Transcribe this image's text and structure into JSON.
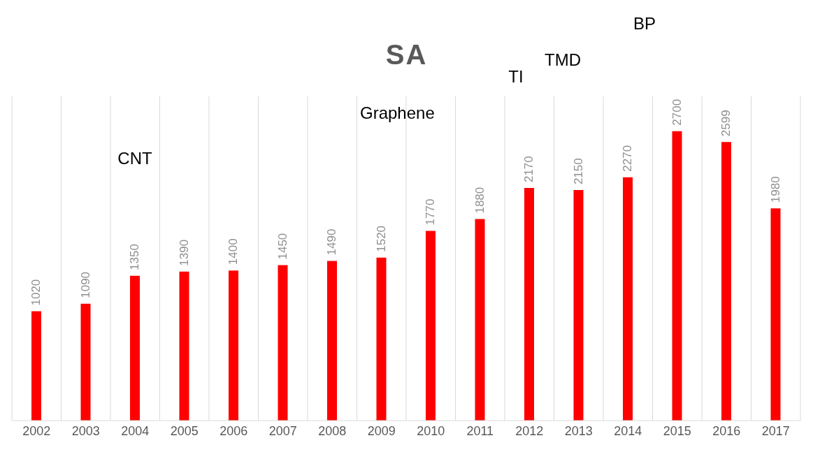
{
  "chart_data": {
    "type": "bar",
    "title": "SA",
    "categories": [
      "2002",
      "2003",
      "2004",
      "2005",
      "2006",
      "2007",
      "2008",
      "2009",
      "2010",
      "2011",
      "2012",
      "2013",
      "2014",
      "2015",
      "2016",
      "2017"
    ],
    "values": [
      1020,
      1090,
      1350,
      1390,
      1400,
      1450,
      1490,
      1520,
      1770,
      1880,
      2170,
      2150,
      2270,
      2700,
      2599,
      1980
    ],
    "color": "#ff0000",
    "data_labels": true,
    "grid": "x",
    "tick_labels": "x",
    "annotations": [
      "CNT",
      "Graphene",
      "TI",
      "TMD",
      "BP"
    ]
  }
}
